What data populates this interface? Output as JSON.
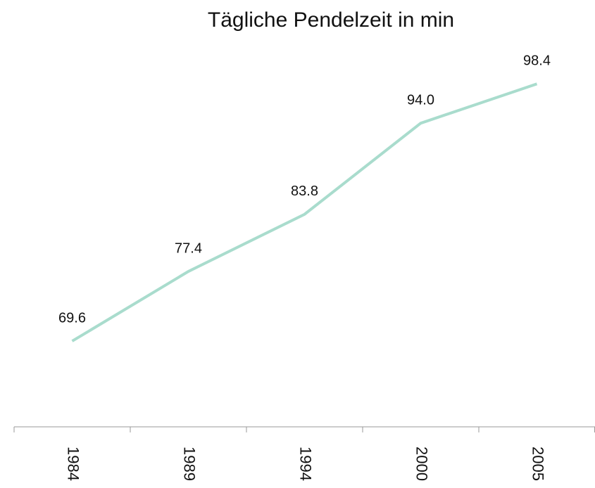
{
  "chart_data": {
    "type": "line",
    "title": "Tägliche Pendelzeit in min",
    "categories": [
      "1984",
      "1989",
      "1994",
      "2000",
      "2005"
    ],
    "series": [
      {
        "color": "#a9dccd",
        "values": [
          69.6,
          77.4,
          83.8,
          94.0,
          98.4
        ],
        "value_labels": [
          "69.6",
          "77.4",
          "83.8",
          "94.0",
          "98.4"
        ]
      }
    ],
    "ylim": [
      60,
      100
    ]
  }
}
